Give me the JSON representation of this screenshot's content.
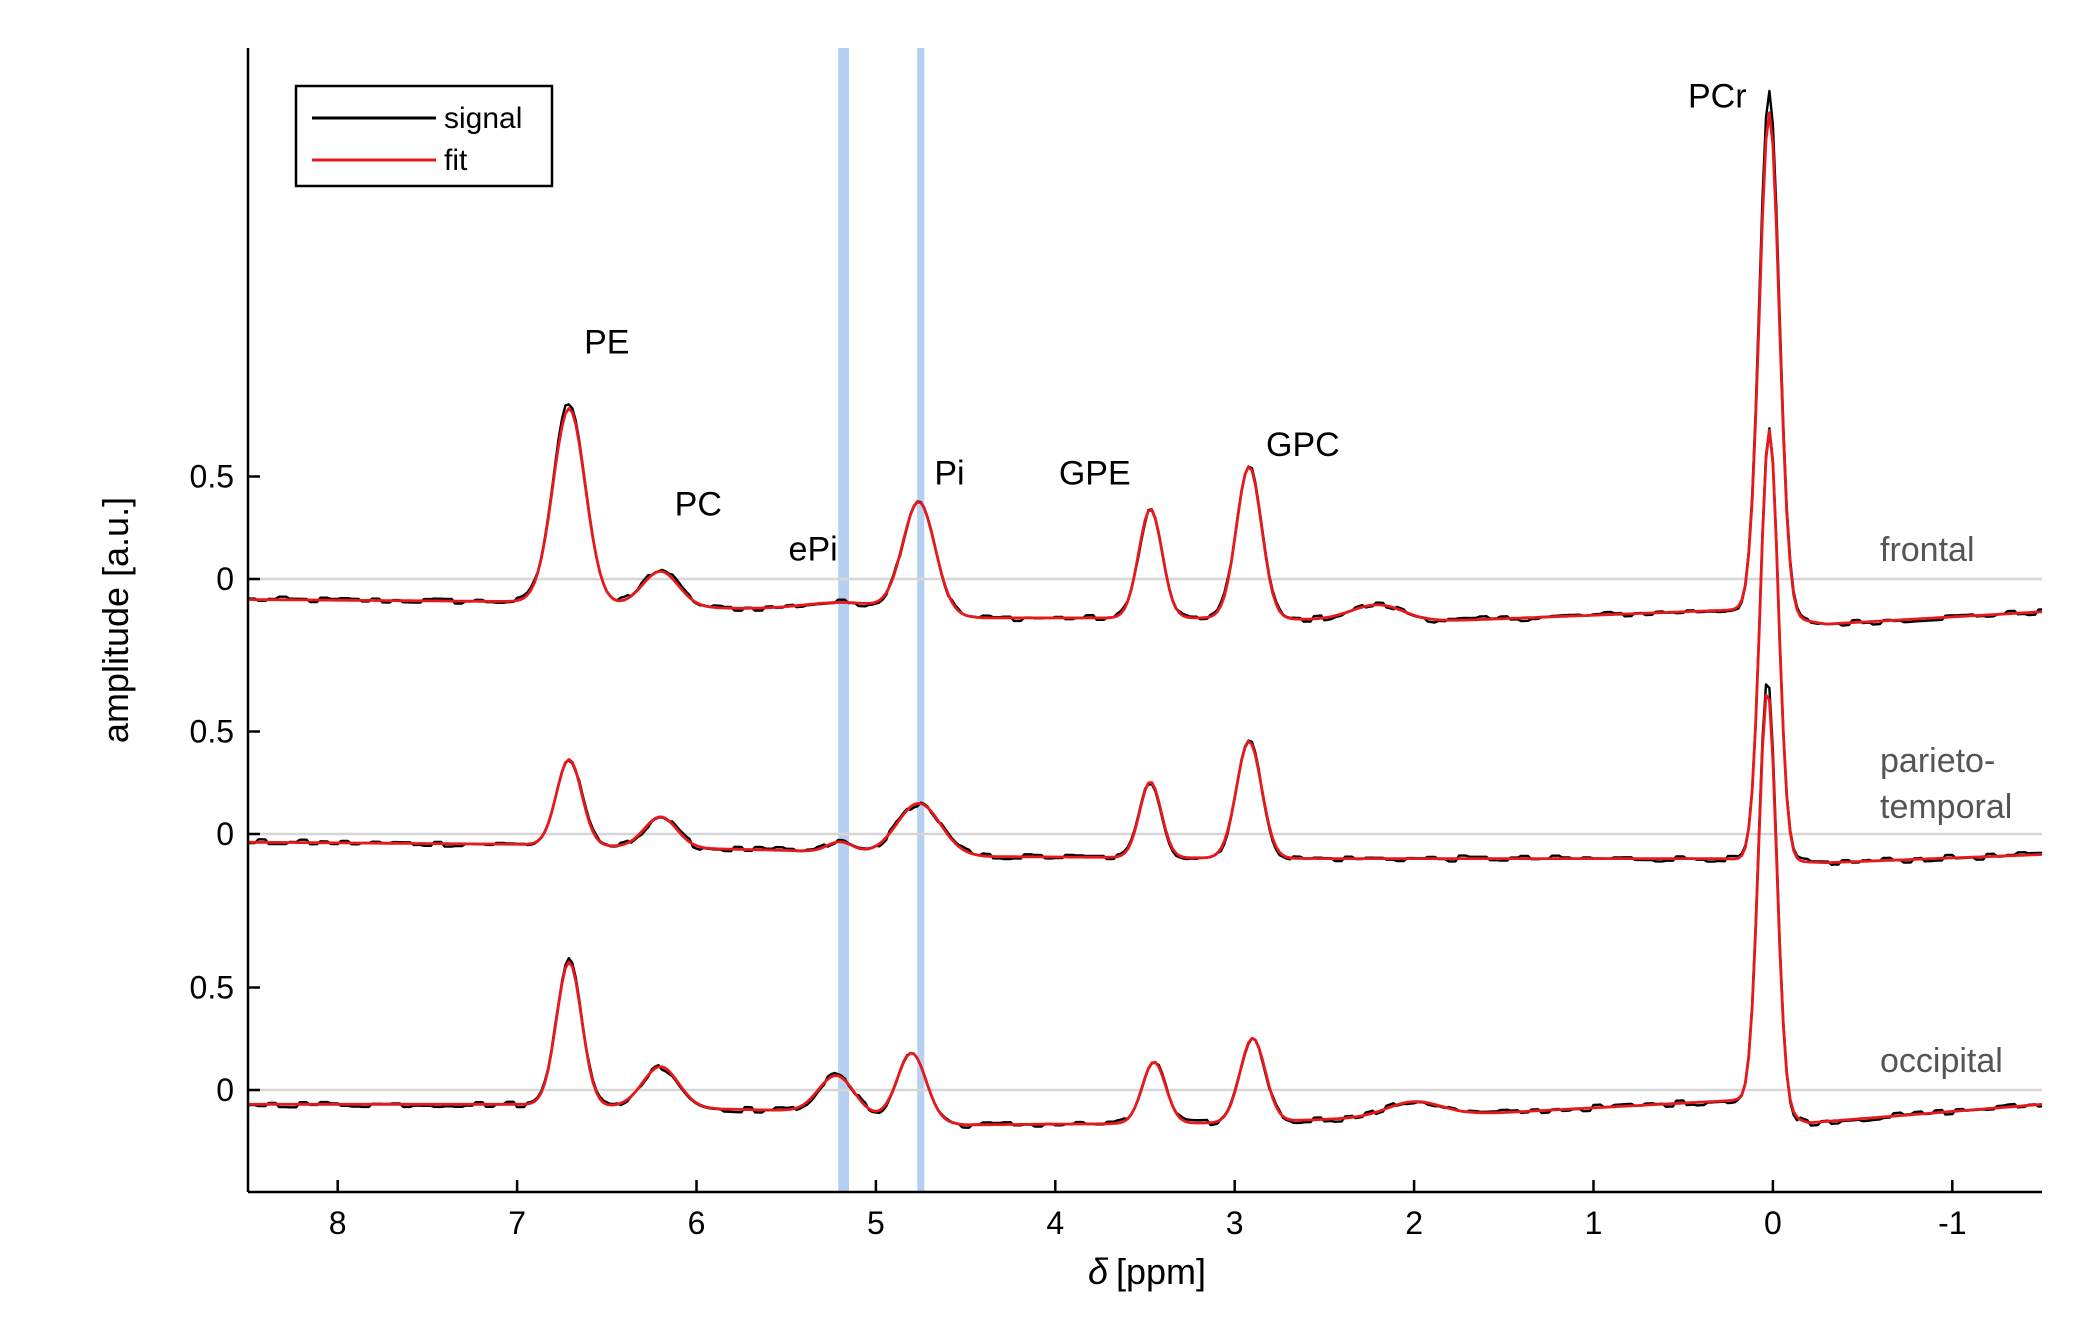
{
  "chart_data": {
    "type": "line",
    "xlabel_symbol": "δ",
    "xlabel_unit": "[ppm]",
    "ylabel": "amplitude [a.u.]",
    "xlim": [
      8.5,
      -1.5
    ],
    "x_reversed": true,
    "x_ticks": [
      8,
      7,
      6,
      5,
      4,
      3,
      2,
      1,
      0,
      -1
    ],
    "y_ticks": [
      "0.5",
      "0"
    ],
    "grid": false,
    "legend": {
      "placement": "top-left",
      "entries": [
        {
          "label": "signal",
          "color": "#000000"
        },
        {
          "label": "fit",
          "color": "#e8191c"
        }
      ]
    },
    "highlight_bands": [
      {
        "from": 5.21,
        "to": 5.15,
        "color": "#a9c8f0"
      },
      {
        "from": 4.77,
        "to": 4.73,
        "color": "#a9c8f0"
      }
    ],
    "peak_labels": [
      {
        "text": "PE",
        "x": 6.5,
        "y": 1.1
      },
      {
        "text": "PC",
        "x": 5.99,
        "y": 0.31
      },
      {
        "text": "ePi",
        "x": 5.35,
        "y": 0.09
      },
      {
        "text": "Pi",
        "x": 4.59,
        "y": 0.46
      },
      {
        "text": "GPE",
        "x": 3.78,
        "y": 0.46
      },
      {
        "text": "GPC",
        "x": 2.62,
        "y": 0.6
      },
      {
        "text": "PCr",
        "x": 0.31,
        "y": 2.3
      }
    ],
    "panels": [
      {
        "name": "frontal",
        "baseline_y": 0,
        "series": [
          {
            "name": "signal",
            "color": "#000000",
            "line_width": 2.4,
            "noise": 0.015,
            "peaks": [
              [
                6.71,
                0.98,
                0.09
              ],
              [
                6.2,
                0.18,
                0.1
              ],
              [
                5.15,
                0.05,
                0.25
              ],
              [
                4.76,
                0.55,
                0.09
              ],
              [
                3.47,
                0.53,
                0.065
              ],
              [
                2.92,
                0.75,
                0.07
              ],
              [
                2.2,
                0.08,
                0.15
              ],
              [
                0.02,
                2.55,
                0.055
              ]
            ],
            "baseline": [
              [
                8.5,
                -0.1
              ],
              [
                7.0,
                -0.11
              ],
              [
                5.6,
                -0.15
              ],
              [
                4.4,
                -0.19
              ],
              [
                3.0,
                -0.19
              ],
              [
                2.0,
                -0.21
              ],
              [
                0.2,
                -0.15
              ],
              [
                -0.3,
                -0.22
              ],
              [
                -1.5,
                -0.16
              ]
            ]
          },
          {
            "name": "fit",
            "color": "#e8191c",
            "line_width": 2.8,
            "noise": 0,
            "peaks": [
              [
                6.71,
                0.95,
                0.09
              ],
              [
                6.2,
                0.17,
                0.1
              ],
              [
                5.15,
                0.05,
                0.25
              ],
              [
                4.76,
                0.54,
                0.09
              ],
              [
                3.47,
                0.53,
                0.065
              ],
              [
                2.92,
                0.74,
                0.07
              ],
              [
                2.2,
                0.08,
                0.15
              ],
              [
                0.02,
                2.45,
                0.055
              ]
            ],
            "baseline": [
              [
                8.5,
                -0.1
              ],
              [
                7.0,
                -0.11
              ],
              [
                5.6,
                -0.15
              ],
              [
                4.4,
                -0.19
              ],
              [
                3.0,
                -0.19
              ],
              [
                2.0,
                -0.21
              ],
              [
                0.2,
                -0.15
              ],
              [
                -0.3,
                -0.22
              ],
              [
                -1.5,
                -0.16
              ]
            ]
          }
        ]
      },
      {
        "name": "parieto-temporal",
        "baseline_y": 0,
        "series": [
          {
            "name": "signal",
            "color": "#000000",
            "line_width": 2.4,
            "noise": 0.015,
            "peaks": [
              [
                6.71,
                0.42,
                0.07
              ],
              [
                6.2,
                0.15,
                0.09
              ],
              [
                5.2,
                0.05,
                0.07
              ],
              [
                4.76,
                0.25,
                0.12
              ],
              [
                3.47,
                0.37,
                0.06
              ],
              [
                2.92,
                0.57,
                0.07
              ],
              [
                0.02,
                2.1,
                0.05
              ]
            ],
            "baseline": [
              [
                8.5,
                -0.04
              ],
              [
                7.0,
                -0.05
              ],
              [
                5.5,
                -0.08
              ],
              [
                4.4,
                -0.11
              ],
              [
                2.5,
                -0.12
              ],
              [
                0.3,
                -0.12
              ],
              [
                -0.3,
                -0.14
              ],
              [
                -1.5,
                -0.1
              ]
            ]
          },
          {
            "name": "fit",
            "color": "#e8191c",
            "line_width": 2.8,
            "noise": 0,
            "peaks": [
              [
                6.71,
                0.42,
                0.07
              ],
              [
                6.2,
                0.15,
                0.09
              ],
              [
                5.2,
                0.05,
                0.07
              ],
              [
                4.76,
                0.25,
                0.12
              ],
              [
                3.47,
                0.37,
                0.06
              ],
              [
                2.92,
                0.57,
                0.07
              ],
              [
                0.02,
                2.1,
                0.05
              ]
            ],
            "baseline": [
              [
                8.5,
                -0.04
              ],
              [
                7.0,
                -0.05
              ],
              [
                5.5,
                -0.08
              ],
              [
                4.4,
                -0.11
              ],
              [
                2.5,
                -0.12
              ],
              [
                0.3,
                -0.12
              ],
              [
                -0.3,
                -0.14
              ],
              [
                -1.5,
                -0.1
              ]
            ]
          }
        ]
      },
      {
        "name": "occipital",
        "baseline_y": 0,
        "series": [
          {
            "name": "signal",
            "color": "#000000",
            "line_width": 2.4,
            "noise": 0.015,
            "peaks": [
              [
                6.71,
                0.73,
                0.07
              ],
              [
                6.2,
                0.2,
                0.1
              ],
              [
                5.22,
                0.19,
                0.1
              ],
              [
                4.8,
                0.33,
                0.08
              ],
              [
                3.45,
                0.3,
                0.065
              ],
              [
                2.9,
                0.41,
                0.07
              ],
              [
                2.0,
                0.07,
                0.15
              ],
              [
                0.03,
                2.1,
                0.05
              ]
            ],
            "baseline": [
              [
                8.5,
                -0.07
              ],
              [
                7.0,
                -0.07
              ],
              [
                5.5,
                -0.1
              ],
              [
                4.5,
                -0.17
              ],
              [
                3.0,
                -0.16
              ],
              [
                1.5,
                -0.11
              ],
              [
                0.2,
                -0.05
              ],
              [
                -0.2,
                -0.16
              ],
              [
                -1.5,
                -0.07
              ]
            ]
          },
          {
            "name": "fit",
            "color": "#e8191c",
            "line_width": 2.8,
            "noise": 0,
            "peaks": [
              [
                6.71,
                0.7,
                0.07
              ],
              [
                6.2,
                0.2,
                0.1
              ],
              [
                5.22,
                0.19,
                0.1
              ],
              [
                4.8,
                0.33,
                0.08
              ],
              [
                3.45,
                0.3,
                0.065
              ],
              [
                2.9,
                0.41,
                0.07
              ],
              [
                2.0,
                0.07,
                0.15
              ],
              [
                0.03,
                2.05,
                0.05
              ]
            ],
            "baseline": [
              [
                8.5,
                -0.07
              ],
              [
                7.0,
                -0.07
              ],
              [
                5.5,
                -0.1
              ],
              [
                4.5,
                -0.17
              ],
              [
                3.0,
                -0.16
              ],
              [
                1.5,
                -0.11
              ],
              [
                0.2,
                -0.05
              ],
              [
                -0.2,
                -0.16
              ],
              [
                -1.5,
                -0.07
              ]
            ]
          }
        ]
      }
    ]
  }
}
